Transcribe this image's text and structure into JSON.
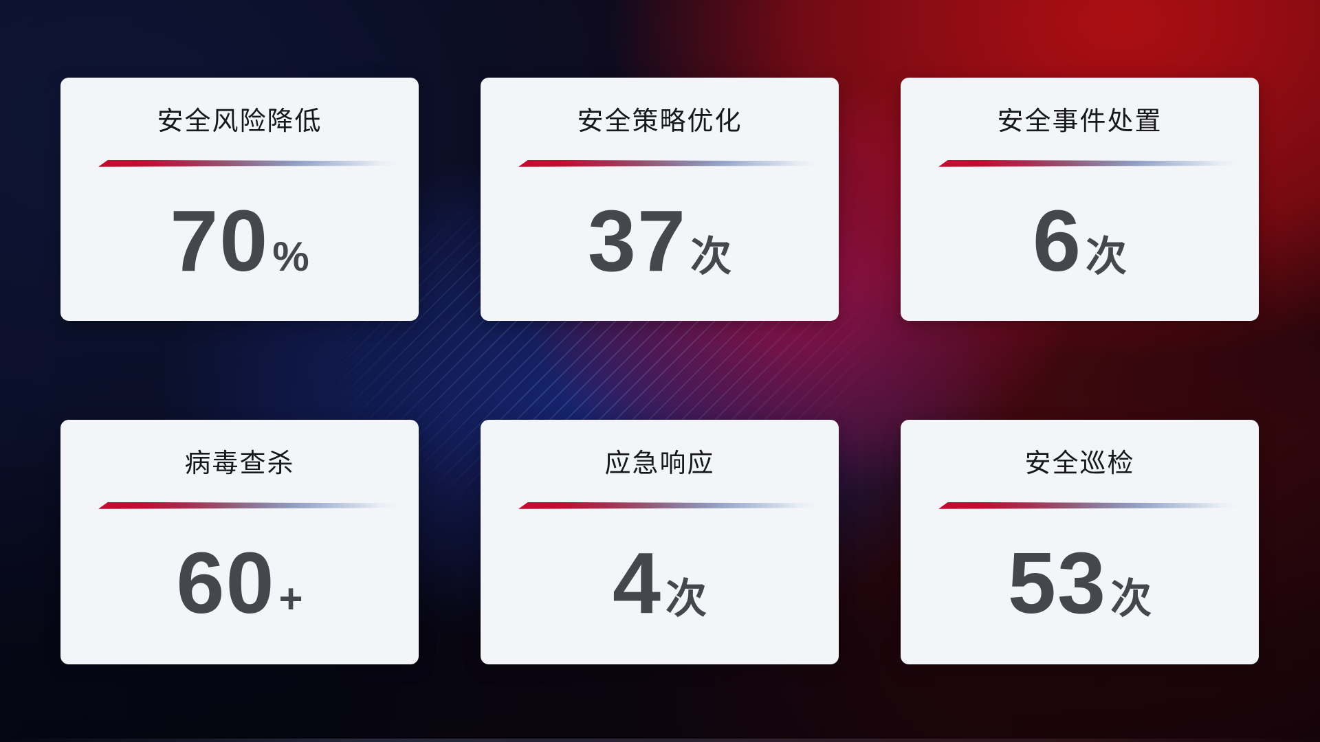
{
  "dashboard": {
    "cards": [
      {
        "title": "安全风险降低",
        "value": "70",
        "unit": "%"
      },
      {
        "title": "安全策略优化",
        "value": "37",
        "unit": "次"
      },
      {
        "title": "安全事件处置",
        "value": "6",
        "unit": "次"
      },
      {
        "title": "病毒查杀",
        "value": "60",
        "unit": "+"
      },
      {
        "title": "应急响应",
        "value": "4",
        "unit": "次"
      },
      {
        "title": "安全巡检",
        "value": "53",
        "unit": "次"
      }
    ],
    "colors": {
      "card_background": "#f4f5f8",
      "title_color": "#17181c",
      "value_color": "#45474d",
      "divider_red": "#c30b31",
      "divider_blue": "#aebcd8",
      "background_navy": "#0c1130",
      "background_blue": "#162676",
      "background_red": "#ab0e13",
      "background_crimson": "#ac1048"
    }
  }
}
